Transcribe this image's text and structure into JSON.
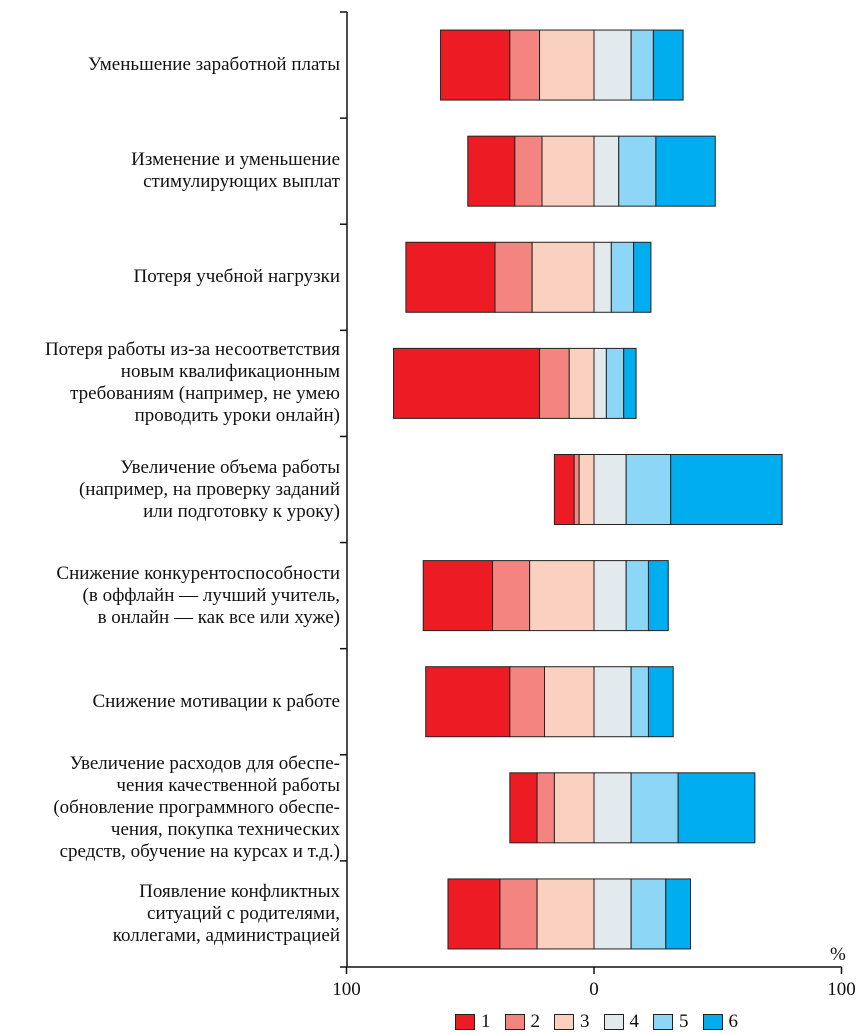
{
  "chart_data": {
    "type": "bar",
    "subtype": "diverging-stacked-horizontal",
    "categories": [
      "Уменьшение заработной платы",
      "Изменение и уменьшение\nстимулирующих выплат",
      "Потеря учебной нагрузки",
      "Потеря работы из-за несоответствия\nновым квалификационным\nтребованиям (например, не умею\nпроводить уроки онлайн)",
      "Увеличение объема работы\n(например, на проверку заданий\nили подготовку к уроку)",
      "Снижение конкурентоспособности\n(в оффлайн — лучший учитель,\nв онлайн — как все или хуже)",
      "Снижение мотивации к работе",
      "Увеличение расходов для обеспе-\nчения  качественной работы\n(обновление программного обеспе-\nчения, покупка технических\nсредств, обучение на курсах и т.д.)",
      "Появление конфликтных\nситуаций с родителями,\nколлегами, администрацией"
    ],
    "series": [
      {
        "name": "1",
        "color": "#ED1C24",
        "values": [
          28,
          19,
          36,
          59,
          8,
          28,
          34,
          11,
          21
        ]
      },
      {
        "name": "2",
        "color": "#F4847F",
        "values": [
          12,
          11,
          15,
          12,
          2,
          15,
          14,
          7,
          15
        ]
      },
      {
        "name": "3",
        "color": "#FAD1C1",
        "values": [
          22,
          21,
          25,
          10,
          6,
          26,
          20,
          16,
          23
        ]
      },
      {
        "name": "4",
        "color": "#E3EAEE",
        "values": [
          15,
          10,
          7,
          5,
          13,
          13,
          15,
          15,
          15
        ]
      },
      {
        "name": "5",
        "color": "#8ED6F5",
        "values": [
          9,
          15,
          9,
          7,
          18,
          9,
          7,
          19,
          14
        ]
      },
      {
        "name": "6",
        "color": "#00AEEF",
        "values": [
          12,
          24,
          7,
          5,
          45,
          8,
          10,
          31,
          10
        ]
      }
    ],
    "negative_series_count": 3,
    "x_ticks": [
      "100",
      "0",
      "100"
    ],
    "xlim": [
      -100,
      100
    ],
    "unit_label": "%",
    "legend_position": "bottom",
    "grid": false
  }
}
